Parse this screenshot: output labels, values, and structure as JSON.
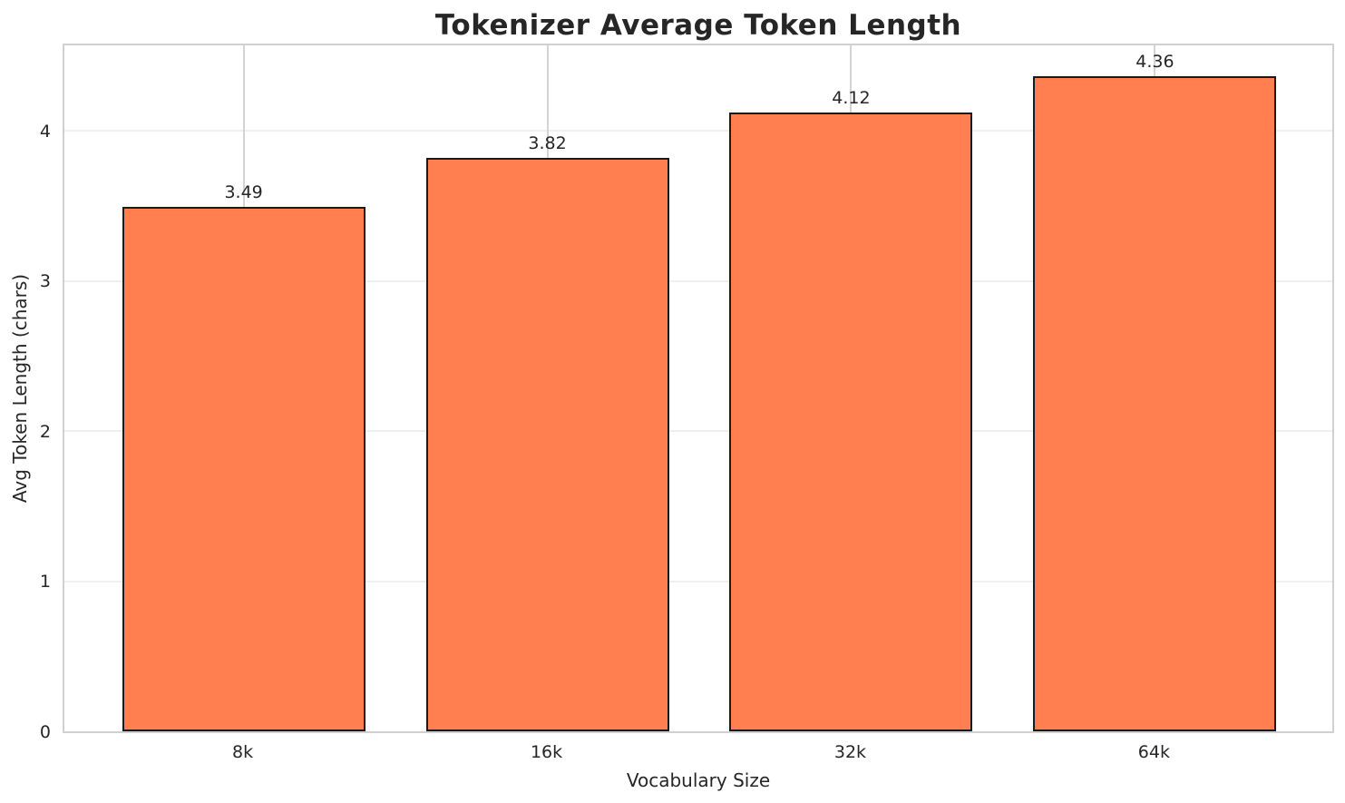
{
  "chart_data": {
    "type": "bar",
    "title": "Tokenizer Average Token Length",
    "categories": [
      "8k",
      "16k",
      "32k",
      "64k"
    ],
    "values": [
      3.49,
      3.82,
      4.12,
      4.36
    ],
    "value_labels": [
      "3.49",
      "3.82",
      "4.12",
      "4.36"
    ],
    "xlabel": "Vocabulary Size",
    "ylabel": "Avg Token Length (chars)",
    "yticks": [
      0,
      1,
      2,
      3,
      4
    ],
    "ytick_labels": [
      "0",
      "1",
      "2",
      "3",
      "4"
    ],
    "ylim": [
      0,
      4.58
    ],
    "grid": true,
    "legend_position": "none",
    "bar_color": "#ff7f50",
    "bar_edge_color": "#1a1a1a"
  },
  "colors": {
    "background": "#ffffff",
    "title_text": "#262626",
    "tick_text": "#262626",
    "plot_border": "#d0d0d0",
    "gridline_horizontal": "#efefef",
    "gridline_vertical": "#d4d4d4"
  }
}
